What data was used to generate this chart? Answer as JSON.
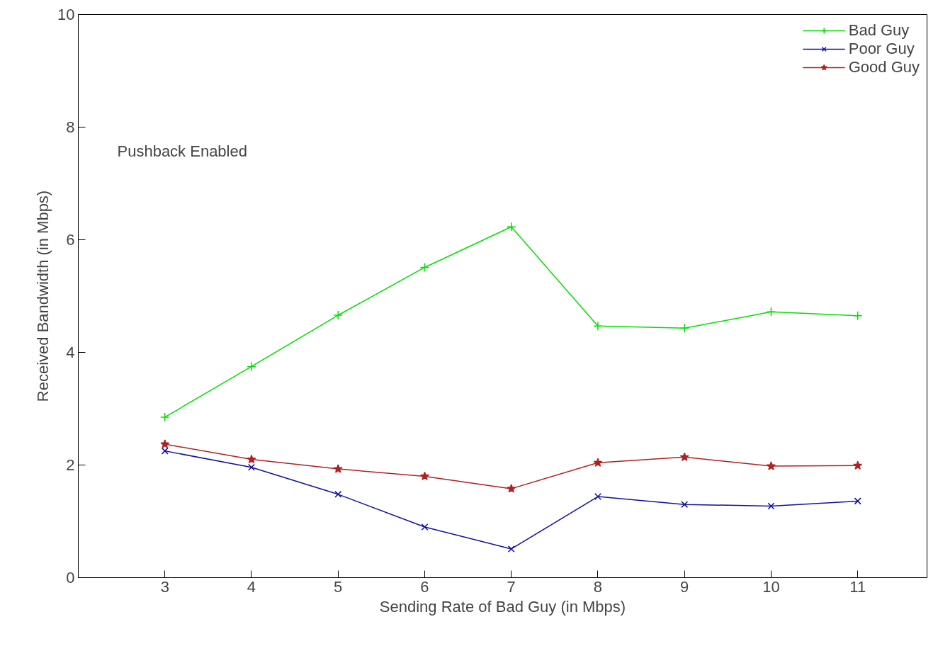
{
  "chart_data": {
    "type": "line",
    "xlabel": "Sending Rate of Bad Guy (in Mbps)",
    "ylabel": "Received Bandwidth (in Mbps)",
    "x": [
      3,
      4,
      5,
      6,
      7,
      8,
      9,
      10,
      11
    ],
    "series": [
      {
        "name": "Bad Guy",
        "color": "#00e000",
        "marker": "cross",
        "values": [
          2.85,
          3.75,
          4.66,
          5.51,
          6.23,
          4.47,
          4.43,
          4.72,
          4.65
        ]
      },
      {
        "name": "Poor Guy",
        "color": "#1010a0",
        "marker": "x",
        "values": [
          2.25,
          1.96,
          1.48,
          0.9,
          0.51,
          1.44,
          1.3,
          1.27,
          1.36
        ]
      },
      {
        "name": "Good Guy",
        "color": "#b02020",
        "marker": "star",
        "values": [
          2.37,
          2.1,
          1.93,
          1.8,
          1.58,
          2.04,
          2.14,
          1.98,
          1.99
        ]
      }
    ],
    "xlim": [
      2,
      11.8
    ],
    "ylim": [
      0,
      10
    ],
    "xticks": [
      3,
      4,
      5,
      6,
      7,
      8,
      9,
      10,
      11
    ],
    "yticks": [
      0,
      2,
      4,
      6,
      8,
      10
    ],
    "annotations": [
      "Pushback Enabled"
    ],
    "grid": false,
    "legend": "top right",
    "line_style": "solid"
  }
}
